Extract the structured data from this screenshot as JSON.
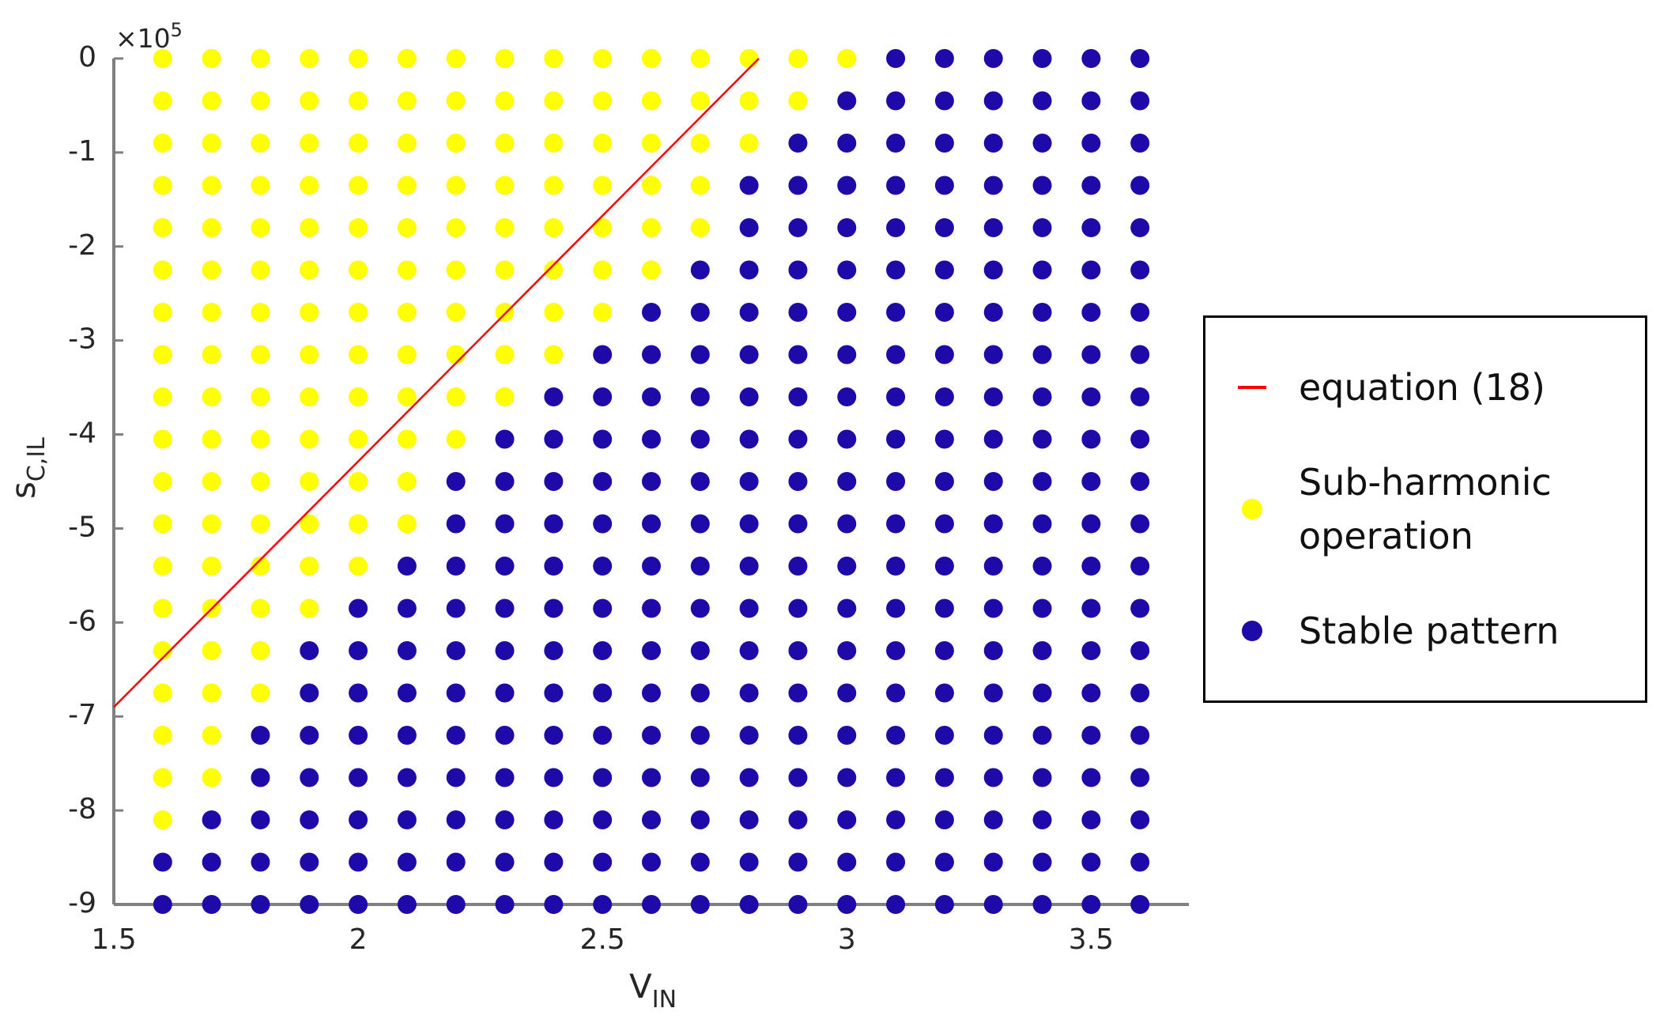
{
  "chart_data": {
    "type": "scatter",
    "xlabel": [
      "V",
      "IN"
    ],
    "ylabel": [
      "s",
      "C,IL"
    ],
    "y_multiplier": [
      "×10",
      "5"
    ],
    "xlim": [
      1.5,
      3.7
    ],
    "ylim": [
      -9,
      0
    ],
    "xticks": [
      1.5,
      2,
      2.5,
      3,
      3.5
    ],
    "yticks": [
      0,
      -1,
      -2,
      -3,
      -4,
      -5,
      -6,
      -7,
      -8,
      -9
    ],
    "series": [
      {
        "name": "equation (18)",
        "mode": "line",
        "color": "#ff0000",
        "x": [
          1.5,
          2.82
        ],
        "y": [
          -6.9,
          0
        ]
      },
      {
        "name": "Sub-harmonic operation",
        "mode": "markers",
        "color": "#ffff00",
        "x": [
          1.6,
          1.7,
          1.8,
          1.9,
          2,
          2.1,
          2.2,
          2.3,
          2.4,
          2.5,
          2.6,
          2.7,
          2.8,
          2.9,
          3,
          1.6,
          1.7,
          1.8,
          1.9,
          2,
          2.1,
          2.2,
          2.3,
          2.4,
          2.5,
          2.6,
          2.7,
          2.8,
          2.9,
          1.6,
          1.7,
          1.8,
          1.9,
          2,
          2.1,
          2.2,
          2.3,
          2.4,
          2.5,
          2.6,
          2.7,
          2.8,
          1.6,
          1.7,
          1.8,
          1.9,
          2,
          2.1,
          2.2,
          2.3,
          2.4,
          2.5,
          2.6,
          2.7,
          1.6,
          1.7,
          1.8,
          1.9,
          2,
          2.1,
          2.2,
          2.3,
          2.4,
          2.5,
          2.6,
          2.7,
          1.6,
          1.7,
          1.8,
          1.9,
          2,
          2.1,
          2.2,
          2.3,
          2.4,
          2.5,
          2.6,
          1.6,
          1.7,
          1.8,
          1.9,
          2,
          2.1,
          2.2,
          2.3,
          2.4,
          2.5,
          1.6,
          1.7,
          1.8,
          1.9,
          2,
          2.1,
          2.2,
          2.3,
          2.4,
          1.6,
          1.7,
          1.8,
          1.9,
          2,
          2.1,
          2.2,
          2.3,
          1.6,
          1.7,
          1.8,
          1.9,
          2,
          2.1,
          2.2,
          1.6,
          1.7,
          1.8,
          1.9,
          2,
          2.1,
          1.6,
          1.7,
          1.8,
          1.9,
          2,
          2.1,
          1.6,
          1.7,
          1.8,
          1.9,
          2,
          1.6,
          1.7,
          1.8,
          1.9,
          1.6,
          1.7,
          1.8,
          1.6,
          1.7,
          1.8,
          1.6,
          1.7,
          1.6,
          1.7,
          1.6
        ],
        "y": [
          0,
          0,
          0,
          0,
          0,
          0,
          0,
          0,
          0,
          0,
          0,
          0,
          0,
          0,
          0,
          -0.45,
          -0.45,
          -0.45,
          -0.45,
          -0.45,
          -0.45,
          -0.45,
          -0.45,
          -0.45,
          -0.45,
          -0.45,
          -0.45,
          -0.45,
          -0.45,
          -0.9,
          -0.9,
          -0.9,
          -0.9,
          -0.9,
          -0.9,
          -0.9,
          -0.9,
          -0.9,
          -0.9,
          -0.9,
          -0.9,
          -0.9,
          -1.35,
          -1.35,
          -1.35,
          -1.35,
          -1.35,
          -1.35,
          -1.35,
          -1.35,
          -1.35,
          -1.35,
          -1.35,
          -1.35,
          -1.8,
          -1.8,
          -1.8,
          -1.8,
          -1.8,
          -1.8,
          -1.8,
          -1.8,
          -1.8,
          -1.8,
          -1.8,
          -1.8,
          -2.25,
          -2.25,
          -2.25,
          -2.25,
          -2.25,
          -2.25,
          -2.25,
          -2.25,
          -2.25,
          -2.25,
          -2.25,
          -2.7,
          -2.7,
          -2.7,
          -2.7,
          -2.7,
          -2.7,
          -2.7,
          -2.7,
          -2.7,
          -2.7,
          -3.15,
          -3.15,
          -3.15,
          -3.15,
          -3.15,
          -3.15,
          -3.15,
          -3.15,
          -3.15,
          -3.6,
          -3.6,
          -3.6,
          -3.6,
          -3.6,
          -3.6,
          -3.6,
          -3.6,
          -4.05,
          -4.05,
          -4.05,
          -4.05,
          -4.05,
          -4.05,
          -4.05,
          -4.5,
          -4.5,
          -4.5,
          -4.5,
          -4.5,
          -4.5,
          -4.95,
          -4.95,
          -4.95,
          -4.95,
          -4.95,
          -4.95,
          -5.4,
          -5.4,
          -5.4,
          -5.4,
          -5.4,
          -5.85,
          -5.85,
          -5.85,
          -5.85,
          -6.3,
          -6.3,
          -6.3,
          -6.75,
          -6.75,
          -6.75,
          -7.2,
          -7.2,
          -7.65,
          -7.65,
          -8.1
        ]
      },
      {
        "name": "Stable pattern",
        "mode": "markers",
        "color": "#1e0aa8",
        "x": [
          3.1,
          3.2,
          3.3,
          3.4,
          3.5,
          3.6,
          3,
          3.1,
          3.2,
          3.3,
          3.4,
          3.5,
          3.6,
          2.9,
          3,
          3.1,
          3.2,
          3.3,
          3.4,
          3.5,
          3.6,
          2.8,
          2.9,
          3,
          3.1,
          3.2,
          3.3,
          3.4,
          3.5,
          3.6,
          2.8,
          2.9,
          3,
          3.1,
          3.2,
          3.3,
          3.4,
          3.5,
          3.6,
          2.7,
          2.8,
          2.9,
          3,
          3.1,
          3.2,
          3.3,
          3.4,
          3.5,
          3.6,
          2.6,
          2.7,
          2.8,
          2.9,
          3,
          3.1,
          3.2,
          3.3,
          3.4,
          3.5,
          3.6,
          2.5,
          2.6,
          2.7,
          2.8,
          2.9,
          3,
          3.1,
          3.2,
          3.3,
          3.4,
          3.5,
          3.6,
          2.4,
          2.5,
          2.6,
          2.7,
          2.8,
          2.9,
          3,
          3.1,
          3.2,
          3.3,
          3.4,
          3.5,
          3.6,
          2.3,
          2.4,
          2.5,
          2.6,
          2.7,
          2.8,
          2.9,
          3,
          3.1,
          3.2,
          3.3,
          3.4,
          3.5,
          3.6,
          2.2,
          2.3,
          2.4,
          2.5,
          2.6,
          2.7,
          2.8,
          2.9,
          3,
          3.1,
          3.2,
          3.3,
          3.4,
          3.5,
          3.6,
          2.2,
          2.3,
          2.4,
          2.5,
          2.6,
          2.7,
          2.8,
          2.9,
          3,
          3.1,
          3.2,
          3.3,
          3.4,
          3.5,
          3.6,
          2.1,
          2.2,
          2.3,
          2.4,
          2.5,
          2.6,
          2.7,
          2.8,
          2.9,
          3,
          3.1,
          3.2,
          3.3,
          3.4,
          3.5,
          3.6,
          2,
          2.1,
          2.2,
          2.3,
          2.4,
          2.5,
          2.6,
          2.7,
          2.8,
          2.9,
          3,
          3.1,
          3.2,
          3.3,
          3.4,
          3.5,
          3.6,
          1.9,
          2,
          2.1,
          2.2,
          2.3,
          2.4,
          2.5,
          2.6,
          2.7,
          2.8,
          2.9,
          3,
          3.1,
          3.2,
          3.3,
          3.4,
          3.5,
          3.6,
          1.9,
          2,
          2.1,
          2.2,
          2.3,
          2.4,
          2.5,
          2.6,
          2.7,
          2.8,
          2.9,
          3,
          3.1,
          3.2,
          3.3,
          3.4,
          3.5,
          3.6,
          1.8,
          1.9,
          2,
          2.1,
          2.2,
          2.3,
          2.4,
          2.5,
          2.6,
          2.7,
          2.8,
          2.9,
          3,
          3.1,
          3.2,
          3.3,
          3.4,
          3.5,
          3.6,
          1.8,
          1.9,
          2,
          2.1,
          2.2,
          2.3,
          2.4,
          2.5,
          2.6,
          2.7,
          2.8,
          2.9,
          3,
          3.1,
          3.2,
          3.3,
          3.4,
          3.5,
          3.6,
          1.7,
          1.8,
          1.9,
          2,
          2.1,
          2.2,
          2.3,
          2.4,
          2.5,
          2.6,
          2.7,
          2.8,
          2.9,
          3,
          3.1,
          3.2,
          3.3,
          3.4,
          3.5,
          3.6,
          1.6,
          1.7,
          1.8,
          1.9,
          2,
          2.1,
          2.2,
          2.3,
          2.4,
          2.5,
          2.6,
          2.7,
          2.8,
          2.9,
          3,
          3.1,
          3.2,
          3.3,
          3.4,
          3.5,
          3.6,
          1.6,
          1.7,
          1.8,
          1.9,
          2,
          2.1,
          2.2,
          2.3,
          2.4,
          2.5,
          2.6,
          2.7,
          2.8,
          2.9,
          3,
          3.1,
          3.2,
          3.3,
          3.4,
          3.5,
          3.6
        ],
        "y": [
          0,
          0,
          0,
          0,
          0,
          0,
          -0.45,
          -0.45,
          -0.45,
          -0.45,
          -0.45,
          -0.45,
          -0.45,
          -0.9,
          -0.9,
          -0.9,
          -0.9,
          -0.9,
          -0.9,
          -0.9,
          -0.9,
          -1.35,
          -1.35,
          -1.35,
          -1.35,
          -1.35,
          -1.35,
          -1.35,
          -1.35,
          -1.35,
          -1.8,
          -1.8,
          -1.8,
          -1.8,
          -1.8,
          -1.8,
          -1.8,
          -1.8,
          -1.8,
          -2.25,
          -2.25,
          -2.25,
          -2.25,
          -2.25,
          -2.25,
          -2.25,
          -2.25,
          -2.25,
          -2.25,
          -2.7,
          -2.7,
          -2.7,
          -2.7,
          -2.7,
          -2.7,
          -2.7,
          -2.7,
          -2.7,
          -2.7,
          -2.7,
          -3.15,
          -3.15,
          -3.15,
          -3.15,
          -3.15,
          -3.15,
          -3.15,
          -3.15,
          -3.15,
          -3.15,
          -3.15,
          -3.15,
          -3.6,
          -3.6,
          -3.6,
          -3.6,
          -3.6,
          -3.6,
          -3.6,
          -3.6,
          -3.6,
          -3.6,
          -3.6,
          -3.6,
          -3.6,
          -4.05,
          -4.05,
          -4.05,
          -4.05,
          -4.05,
          -4.05,
          -4.05,
          -4.05,
          -4.05,
          -4.05,
          -4.05,
          -4.05,
          -4.05,
          -4.05,
          -4.5,
          -4.5,
          -4.5,
          -4.5,
          -4.5,
          -4.5,
          -4.5,
          -4.5,
          -4.5,
          -4.5,
          -4.5,
          -4.5,
          -4.5,
          -4.5,
          -4.5,
          -4.95,
          -4.95,
          -4.95,
          -4.95,
          -4.95,
          -4.95,
          -4.95,
          -4.95,
          -4.95,
          -4.95,
          -4.95,
          -4.95,
          -4.95,
          -4.95,
          -4.95,
          -5.4,
          -5.4,
          -5.4,
          -5.4,
          -5.4,
          -5.4,
          -5.4,
          -5.4,
          -5.4,
          -5.4,
          -5.4,
          -5.4,
          -5.4,
          -5.4,
          -5.4,
          -5.4,
          -5.85,
          -5.85,
          -5.85,
          -5.85,
          -5.85,
          -5.85,
          -5.85,
          -5.85,
          -5.85,
          -5.85,
          -5.85,
          -5.85,
          -5.85,
          -5.85,
          -5.85,
          -5.85,
          -5.85,
          -6.3,
          -6.3,
          -6.3,
          -6.3,
          -6.3,
          -6.3,
          -6.3,
          -6.3,
          -6.3,
          -6.3,
          -6.3,
          -6.3,
          -6.3,
          -6.3,
          -6.3,
          -6.3,
          -6.3,
          -6.3,
          -6.75,
          -6.75,
          -6.75,
          -6.75,
          -6.75,
          -6.75,
          -6.75,
          -6.75,
          -6.75,
          -6.75,
          -6.75,
          -6.75,
          -6.75,
          -6.75,
          -6.75,
          -6.75,
          -6.75,
          -6.75,
          -7.2,
          -7.2,
          -7.2,
          -7.2,
          -7.2,
          -7.2,
          -7.2,
          -7.2,
          -7.2,
          -7.2,
          -7.2,
          -7.2,
          -7.2,
          -7.2,
          -7.2,
          -7.2,
          -7.2,
          -7.2,
          -7.2,
          -7.65,
          -7.65,
          -7.65,
          -7.65,
          -7.65,
          -7.65,
          -7.65,
          -7.65,
          -7.65,
          -7.65,
          -7.65,
          -7.65,
          -7.65,
          -7.65,
          -7.65,
          -7.65,
          -7.65,
          -7.65,
          -7.65,
          -8.1,
          -8.1,
          -8.1,
          -8.1,
          -8.1,
          -8.1,
          -8.1,
          -8.1,
          -8.1,
          -8.1,
          -8.1,
          -8.1,
          -8.1,
          -8.1,
          -8.1,
          -8.1,
          -8.1,
          -8.1,
          -8.1,
          -8.1,
          -8.55,
          -8.55,
          -8.55,
          -8.55,
          -8.55,
          -8.55,
          -8.55,
          -8.55,
          -8.55,
          -8.55,
          -8.55,
          -8.55,
          -8.55,
          -8.55,
          -8.55,
          -8.55,
          -8.55,
          -8.55,
          -8.55,
          -8.55,
          -8.55,
          -9,
          -9,
          -9,
          -9,
          -9,
          -9,
          -9,
          -9,
          -9,
          -9,
          -9,
          -9,
          -9,
          -9,
          -9,
          -9,
          -9,
          -9,
          -9,
          -9,
          -9
        ]
      }
    ],
    "legend": "right"
  }
}
